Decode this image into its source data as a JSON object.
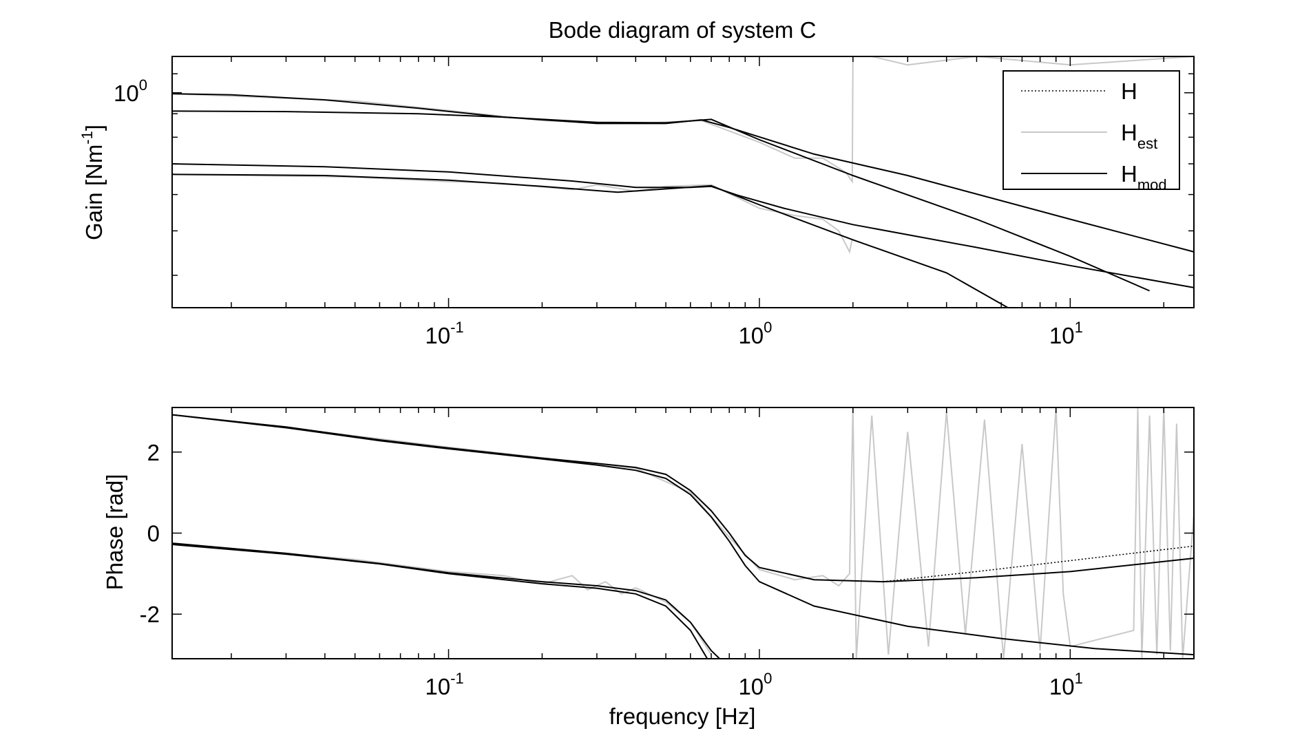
{
  "chart_data": [
    {
      "type": "line",
      "title": "Bode diagram of system C",
      "xlabel": "",
      "ylabel": "Gain [Nm-1]",
      "ylabel_parts": {
        "base": "Gain [Nm",
        "sup": "-1",
        "end": "]"
      },
      "xscale": "log",
      "yscale": "log",
      "xlim": [
        0.0129,
        25
      ],
      "ylim": [
        0.34,
        1.2
      ],
      "xticks": [
        {
          "value": 0.1,
          "base": "10",
          "exp": "-1"
        },
        {
          "value": 1,
          "base": "10",
          "exp": "0"
        },
        {
          "value": 10,
          "base": "10",
          "exp": "1"
        }
      ],
      "yticks": [
        {
          "value": 1,
          "base": "10",
          "exp": "0"
        }
      ],
      "grid": false,
      "legend": {
        "placement": "top-right",
        "entries": [
          {
            "base": "H",
            "sub": "",
            "style": "dotted",
            "color": "#000000"
          },
          {
            "base": "H",
            "sub": "est",
            "style": "solid",
            "color": "#c8c8c8"
          },
          {
            "base": "H",
            "sub": "mod",
            "style": "solid",
            "color": "#000000"
          }
        ]
      },
      "series": [
        {
          "points": [
            [
              0.0129,
              0.995
            ],
            [
              0.02,
              0.99
            ],
            [
              0.04,
              0.965
            ],
            [
              0.08,
              0.925
            ],
            [
              0.15,
              0.885
            ],
            [
              0.3,
              0.857
            ],
            [
              0.5,
              0.857
            ],
            [
              0.65,
              0.873
            ],
            [
              0.8,
              0.84
            ],
            [
              1.5,
              0.735
            ],
            [
              3,
              0.66
            ],
            [
              10,
              0.53
            ],
            [
              25,
              0.45
            ]
          ]
        },
        {
          "points": [
            [
              0.0129,
              0.912
            ],
            [
              0.03,
              0.91
            ],
            [
              0.08,
              0.9
            ],
            [
              0.15,
              0.885
            ],
            [
              0.3,
              0.862
            ],
            [
              0.5,
              0.86
            ],
            [
              0.7,
              0.875
            ],
            [
              1,
              0.79
            ],
            [
              2,
              0.66
            ],
            [
              5,
              0.53
            ],
            [
              10,
              0.44
            ],
            [
              18,
              0.37
            ]
          ]
        },
        {
          "points": [
            [
              0.0129,
              0.7
            ],
            [
              0.04,
              0.69
            ],
            [
              0.1,
              0.672
            ],
            [
              0.25,
              0.642
            ],
            [
              0.4,
              0.622
            ],
            [
              0.6,
              0.622
            ],
            [
              0.7,
              0.625
            ],
            [
              0.85,
              0.598
            ],
            [
              1.2,
              0.56
            ],
            [
              2,
              0.516
            ],
            [
              5,
              0.46
            ],
            [
              10,
              0.42
            ],
            [
              25,
              0.376
            ]
          ]
        },
        {
          "points": [
            [
              0.0129,
              0.664
            ],
            [
              0.04,
              0.66
            ],
            [
              0.1,
              0.645
            ],
            [
              0.2,
              0.625
            ],
            [
              0.35,
              0.607
            ],
            [
              0.55,
              0.62
            ],
            [
              0.7,
              0.627
            ],
            [
              1,
              0.57
            ],
            [
              2,
              0.478
            ],
            [
              4,
              0.405
            ],
            [
              6.3,
              0.34
            ]
          ]
        }
      ],
      "est_series": [
        {
          "points": [
            [
              0.0129,
              0.995
            ],
            [
              0.05,
              0.96
            ],
            [
              0.1,
              0.915
            ],
            [
              0.2,
              0.87
            ],
            [
              0.4,
              0.857
            ],
            [
              0.65,
              0.87
            ],
            [
              1,
              0.78
            ],
            [
              1.3,
              0.72
            ],
            [
              1.6,
              0.72
            ],
            [
              1.9,
              0.67
            ],
            [
              1.99,
              0.64
            ],
            [
              2.0,
              1.25
            ],
            [
              2.3,
              1.2
            ],
            [
              3,
              1.15
            ],
            [
              5,
              1.2
            ],
            [
              10,
              1.15
            ],
            [
              25,
              1.2
            ]
          ]
        },
        {
          "points": [
            [
              0.0129,
              0.664
            ],
            [
              0.05,
              0.655
            ],
            [
              0.1,
              0.64
            ],
            [
              0.15,
              0.635
            ],
            [
              0.25,
              0.615
            ],
            [
              0.3,
              0.63
            ],
            [
              0.4,
              0.61
            ],
            [
              0.5,
              0.625
            ],
            [
              0.7,
              0.63
            ],
            [
              1,
              0.56
            ],
            [
              1.3,
              0.54
            ],
            [
              1.6,
              0.53
            ],
            [
              1.8,
              0.5
            ],
            [
              1.95,
              0.45
            ],
            [
              1.99,
              0.48
            ]
          ]
        }
      ]
    },
    {
      "type": "line",
      "title": "",
      "xlabel": "frequency [Hz]",
      "ylabel": "Phase [rad]",
      "xscale": "log",
      "yscale": "linear",
      "xlim": [
        0.0129,
        25
      ],
      "ylim": [
        -3.1,
        3.1
      ],
      "xticks": [
        {
          "value": 0.1,
          "base": "10",
          "exp": "-1"
        },
        {
          "value": 1,
          "base": "10",
          "exp": "0"
        },
        {
          "value": 10,
          "base": "10",
          "exp": "1"
        }
      ],
      "yticks": [
        {
          "value": 2,
          "label": "2"
        },
        {
          "value": 0,
          "label": "0"
        },
        {
          "value": -2,
          "label": "-2"
        }
      ],
      "grid": false,
      "series": [
        {
          "points": [
            [
              0.0129,
              2.92
            ],
            [
              0.03,
              2.62
            ],
            [
              0.06,
              2.3
            ],
            [
              0.1,
              2.1
            ],
            [
              0.2,
              1.85
            ],
            [
              0.3,
              1.72
            ],
            [
              0.4,
              1.62
            ],
            [
              0.5,
              1.45
            ],
            [
              0.6,
              1.05
            ],
            [
              0.7,
              0.55
            ],
            [
              0.8,
              0.0
            ],
            [
              0.9,
              -0.55
            ],
            [
              1.0,
              -0.85
            ],
            [
              1.5,
              -1.15
            ],
            [
              2.5,
              -1.2
            ],
            [
              5,
              -1.1
            ],
            [
              10,
              -0.95
            ],
            [
              25,
              -0.62
            ]
          ]
        },
        {
          "points": [
            [
              0.0129,
              2.92
            ],
            [
              0.03,
              2.6
            ],
            [
              0.06,
              2.28
            ],
            [
              0.1,
              2.08
            ],
            [
              0.2,
              1.83
            ],
            [
              0.3,
              1.68
            ],
            [
              0.4,
              1.55
            ],
            [
              0.5,
              1.35
            ],
            [
              0.6,
              0.95
            ],
            [
              0.7,
              0.4
            ],
            [
              0.8,
              -0.2
            ],
            [
              0.9,
              -0.8
            ],
            [
              1.0,
              -1.2
            ],
            [
              1.5,
              -1.8
            ],
            [
              3,
              -2.3
            ],
            [
              6,
              -2.6
            ],
            [
              12,
              -2.85
            ],
            [
              25,
              -3.0
            ]
          ]
        },
        {
          "points": [
            [
              0.0129,
              -0.25
            ],
            [
              0.03,
              -0.5
            ],
            [
              0.06,
              -0.75
            ],
            [
              0.1,
              -0.98
            ],
            [
              0.2,
              -1.2
            ],
            [
              0.3,
              -1.3
            ],
            [
              0.4,
              -1.42
            ],
            [
              0.5,
              -1.65
            ],
            [
              0.6,
              -2.2
            ],
            [
              0.7,
              -2.9
            ],
            [
              0.745,
              -3.1
            ]
          ]
        },
        {
          "points": [
            [
              0.0129,
              -0.28
            ],
            [
              0.03,
              -0.52
            ],
            [
              0.06,
              -0.76
            ],
            [
              0.1,
              -1.0
            ],
            [
              0.2,
              -1.25
            ],
            [
              0.3,
              -1.36
            ],
            [
              0.4,
              -1.5
            ],
            [
              0.5,
              -1.8
            ],
            [
              0.6,
              -2.4
            ],
            [
              0.68,
              -3.1
            ]
          ]
        }
      ],
      "dotted_series": [
        {
          "points": [
            [
              2.5,
              -1.2
            ],
            [
              5,
              -0.95
            ],
            [
              10,
              -0.68
            ],
            [
              25,
              -0.32
            ]
          ]
        }
      ],
      "est_series": [
        {
          "points": [
            [
              0.0129,
              2.92
            ],
            [
              0.05,
              2.4
            ],
            [
              0.1,
              2.12
            ],
            [
              0.2,
              1.86
            ],
            [
              0.4,
              1.6
            ],
            [
              0.6,
              1.0
            ],
            [
              0.8,
              -0.1
            ],
            [
              1.0,
              -0.9
            ],
            [
              1.3,
              -1.15
            ],
            [
              1.6,
              -1.05
            ],
            [
              1.8,
              -1.3
            ],
            [
              1.95,
              -1.0
            ],
            [
              2.0,
              3.1
            ],
            [
              2.05,
              -3.1
            ],
            [
              2.3,
              2.9
            ],
            [
              2.6,
              -3.0
            ],
            [
              3,
              2.5
            ],
            [
              3.5,
              -2.8
            ],
            [
              4,
              3.0
            ],
            [
              4.6,
              -2.5
            ],
            [
              5.3,
              2.8
            ],
            [
              6.1,
              -3.1
            ],
            [
              7,
              2.2
            ],
            [
              8,
              -2.9
            ],
            [
              9,
              3.1
            ],
            [
              9.5,
              -1.5
            ],
            [
              10,
              -2.8
            ],
            [
              16,
              -2.4
            ],
            [
              16.5,
              3.1
            ],
            [
              17,
              -3.1
            ],
            [
              18,
              2.9
            ],
            [
              19,
              -3.0
            ],
            [
              20,
              3.1
            ],
            [
              21,
              -2.9
            ],
            [
              22,
              2.7
            ],
            [
              23,
              -3.1
            ],
            [
              25,
              0.5
            ]
          ]
        },
        {
          "points": [
            [
              0.0129,
              -0.25
            ],
            [
              0.05,
              -0.65
            ],
            [
              0.1,
              -0.95
            ],
            [
              0.15,
              -1.05
            ],
            [
              0.2,
              -1.25
            ],
            [
              0.25,
              -1.05
            ],
            [
              0.28,
              -1.4
            ],
            [
              0.32,
              -1.2
            ],
            [
              0.36,
              -1.5
            ],
            [
              0.4,
              -1.35
            ],
            [
              0.5,
              -1.7
            ],
            [
              0.6,
              -2.2
            ],
            [
              0.7,
              -3.0
            ]
          ]
        }
      ]
    }
  ]
}
